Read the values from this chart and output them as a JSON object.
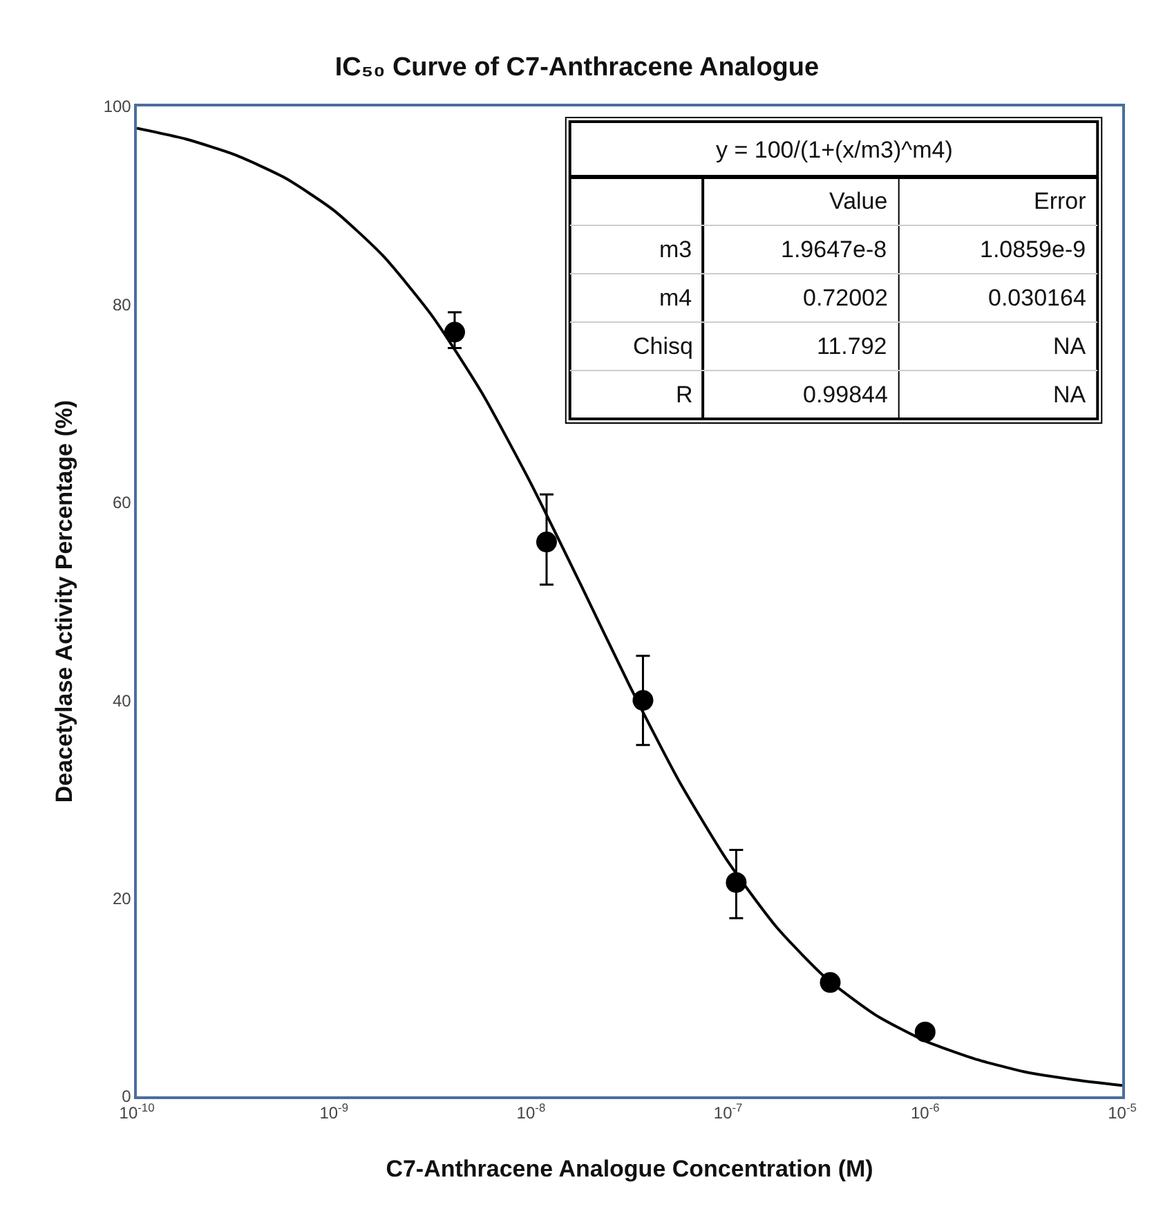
{
  "chart_data": {
    "type": "scatter",
    "title": "IC₅₀ Curve of C7-Anthracene Analogue",
    "xlabel": "C7-Anthracene Analogue Concentration (M)",
    "ylabel": "Deacetylase Activity Percentage (%)",
    "log": "x",
    "xlim": [
      1e-10,
      1e-05
    ],
    "xticks": [
      {
        "value": 1e-10,
        "label": "10$^{-10}$"
      },
      {
        "value": 1e-09,
        "label": "10$^{-9}$"
      },
      {
        "value": 1e-08,
        "label": "10$^{-8}$"
      },
      {
        "value": 1e-07,
        "label": "10$^{-7}$"
      },
      {
        "value": 1e-06,
        "label": "10$^{-6}$"
      },
      {
        "value": 1e-05,
        "label": "10$^{-5}$"
      }
    ],
    "ylim": [
      0,
      100
    ],
    "yticks": [
      0,
      20,
      40,
      60,
      80,
      100
    ],
    "series": [
      {
        "type": "line",
        "color": "#000000",
        "marker": "none",
        "line_style": "solid",
        "x": [
          1e-10,
          1.778e-10,
          3.162e-10,
          5.623e-10,
          1e-09,
          1.778e-09,
          3.162e-09,
          5.623e-09,
          1e-08,
          1.778e-08,
          3.162e-08,
          5.623e-08,
          1e-07,
          1.778e-07,
          3.162e-07,
          5.623e-07,
          1e-06,
          1.778e-06,
          3.162e-06,
          5.623e-06,
          1e-05
        ],
        "values": [
          97.8,
          96.7,
          95.1,
          92.8,
          89.5,
          84.9,
          78.8,
          71.1,
          61.9,
          51.8,
          41.5,
          31.9,
          23.7,
          17.0,
          11.9,
          8.2,
          5.6,
          3.8,
          2.5,
          1.7,
          1.1
        ]
      },
      {
        "color": "#000000",
        "marker": "circle",
        "x": [
          4.1e-09,
          1.2e-08,
          3.7e-08,
          1.1e-07,
          3.3e-07,
          1e-06
        ],
        "values": [
          77.2,
          56,
          40,
          21.6,
          11.5,
          6.5
        ],
        "errors": [
          [
            75.6,
            79.2
          ],
          [
            51.7,
            60.8
          ],
          [
            35.5,
            44.5
          ],
          [
            18.0,
            24.9
          ],
          null,
          null
        ]
      }
    ],
    "annotations": [
      "y = 100/(1+(x/m3)^m4)",
      "Value",
      "Error",
      "m3",
      "1.9647e-8",
      "1.0859e-9",
      "m4",
      "0.72002",
      "0.030164",
      "Chisq",
      "11.792",
      "NA",
      "R",
      "0.99844",
      "NA"
    ]
  }
}
